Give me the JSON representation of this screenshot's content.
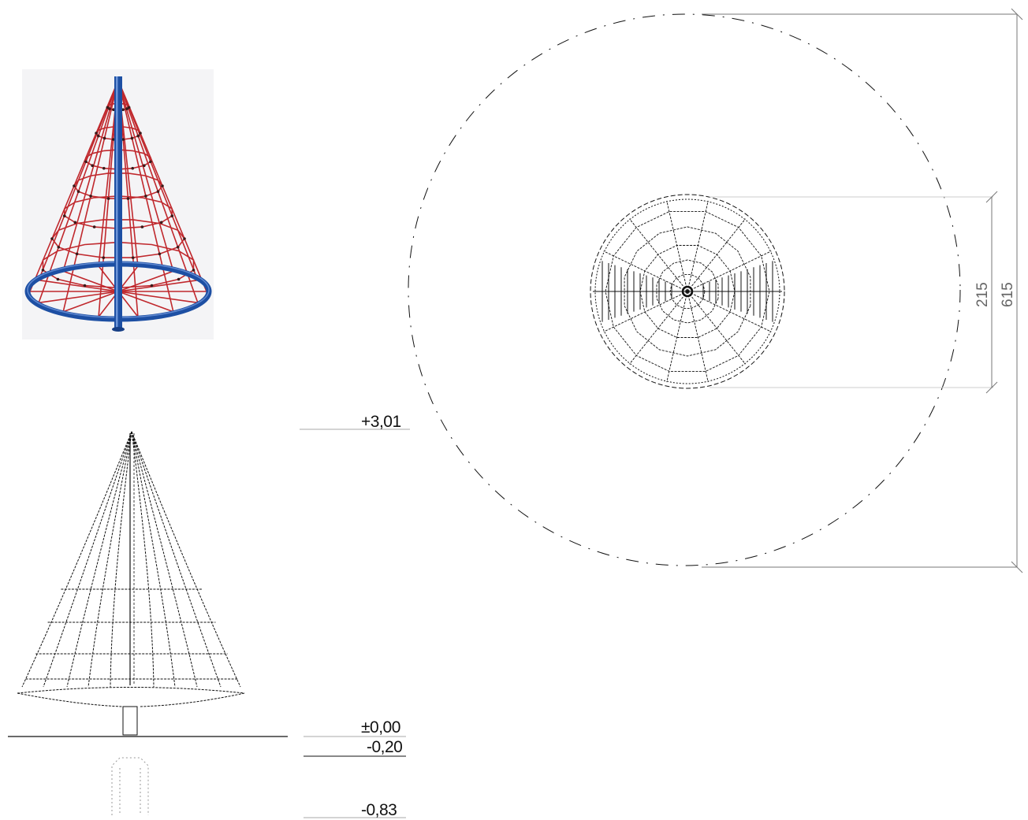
{
  "levels": {
    "top": "+3,01",
    "ground": "±0,00",
    "base": "-0,20",
    "foundation": "-0,83"
  },
  "dimensions": {
    "inner_diameter": "215",
    "outer_diameter": "615"
  },
  "colors": {
    "rope": "#c0282d",
    "frame": "#1d4fa3",
    "line": "#111111",
    "dimension": "#777777"
  },
  "icons": {
    "render": "pyramid-net-render",
    "elevation": "elevation-drawing",
    "plan": "plan-view-drawing"
  }
}
